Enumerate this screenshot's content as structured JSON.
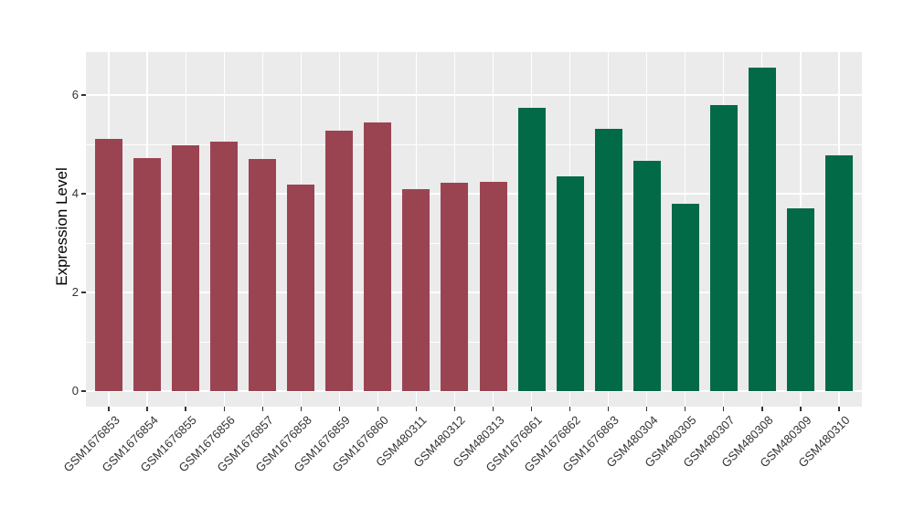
{
  "chart_data": {
    "type": "bar",
    "title": "",
    "xlabel": "",
    "ylabel": "Expression Level",
    "y_ticks": [
      0,
      2,
      4,
      6
    ],
    "y_minor_gridlines": [
      1,
      3,
      5
    ],
    "ylim": [
      -0.33,
      6.87
    ],
    "grid": "major and minor horizontal white gridlines, vertical white gridline at each category center, on gray panel",
    "legend_position": "none",
    "colors": {
      "bar_group_left": "#9A4452",
      "bar_group_right": "#026A46",
      "panel_bg": "#EBEBEB",
      "gridline": "#FFFFFF",
      "tick_text": "#333333",
      "axis_title_text": "#000000"
    },
    "bars": [
      {
        "label": "GSM1676853",
        "value": 5.12,
        "color": "#9A4452"
      },
      {
        "label": "GSM1676854",
        "value": 4.72,
        "color": "#9A4452"
      },
      {
        "label": "GSM1676855",
        "value": 4.98,
        "color": "#9A4452"
      },
      {
        "label": "GSM1676856",
        "value": 5.06,
        "color": "#9A4452"
      },
      {
        "label": "GSM1676857",
        "value": 4.7,
        "color": "#9A4452"
      },
      {
        "label": "GSM1676858",
        "value": 4.18,
        "color": "#9A4452"
      },
      {
        "label": "GSM1676859",
        "value": 5.28,
        "color": "#9A4452"
      },
      {
        "label": "GSM1676860",
        "value": 5.44,
        "color": "#9A4452"
      },
      {
        "label": "GSM480311",
        "value": 4.09,
        "color": "#9A4452"
      },
      {
        "label": "GSM480312",
        "value": 4.22,
        "color": "#9A4452"
      },
      {
        "label": "GSM480313",
        "value": 4.25,
        "color": "#9A4452"
      },
      {
        "label": "GSM1676861",
        "value": 5.75,
        "color": "#026A46"
      },
      {
        "label": "GSM1676862",
        "value": 4.35,
        "color": "#026A46"
      },
      {
        "label": "GSM1676863",
        "value": 5.31,
        "color": "#026A46"
      },
      {
        "label": "GSM480304",
        "value": 4.67,
        "color": "#026A46"
      },
      {
        "label": "GSM480305",
        "value": 3.79,
        "color": "#026A46"
      },
      {
        "label": "GSM480307",
        "value": 5.8,
        "color": "#026A46"
      },
      {
        "label": "GSM480308",
        "value": 6.56,
        "color": "#026A46"
      },
      {
        "label": "GSM480309",
        "value": 3.7,
        "color": "#026A46"
      },
      {
        "label": "GSM480310",
        "value": 4.78,
        "color": "#026A46"
      }
    ]
  }
}
